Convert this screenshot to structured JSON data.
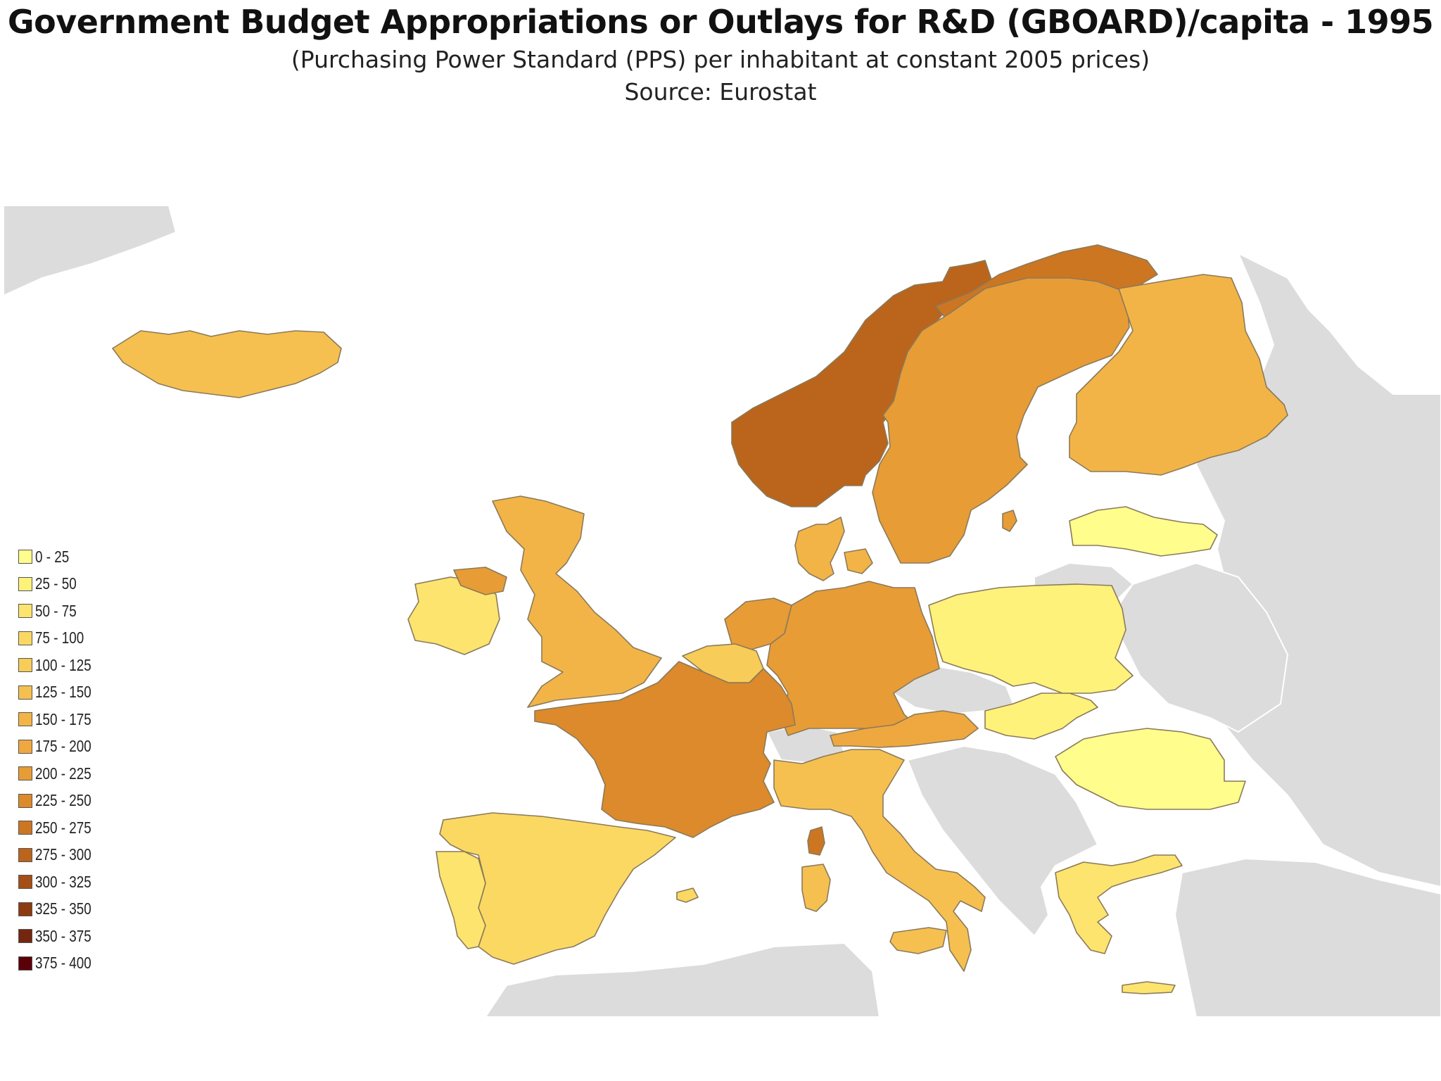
{
  "header": {
    "title": "Government Budget Appropriations or Outlays for R&D (GBOARD)/capita - 1995",
    "subtitle": "(Purchasing Power Standard (PPS) per inhabitant at constant 2005 prices)",
    "source": "Source: Eurostat"
  },
  "legend": [
    {
      "label": "0 - 25",
      "color": "#fffd8c"
    },
    {
      "label": "25 - 50",
      "color": "#fff27a"
    },
    {
      "label": "50 - 75",
      "color": "#fde46e"
    },
    {
      "label": "75 - 100",
      "color": "#fbd862"
    },
    {
      "label": "100 - 125",
      "color": "#f8cc58"
    },
    {
      "label": "125 - 150",
      "color": "#f6c050"
    },
    {
      "label": "150 - 175",
      "color": "#f3b447"
    },
    {
      "label": "175 - 200",
      "color": "#efa83f"
    },
    {
      "label": "200 - 225",
      "color": "#e89c36"
    },
    {
      "label": "225 - 250",
      "color": "#dc8a2b"
    },
    {
      "label": "250 - 275",
      "color": "#cc7622"
    },
    {
      "label": "275 - 300",
      "color": "#bb641b"
    },
    {
      "label": "300 - 325",
      "color": "#a54e16"
    },
    {
      "label": "325 - 350",
      "color": "#8d3a12"
    },
    {
      "label": "350 - 375",
      "color": "#74260e"
    },
    {
      "label": "375 - 400",
      "color": "#5c0008"
    }
  ],
  "colors": {
    "background_land": "#dedede",
    "border": "#8a7a5a",
    "no_data": "#d9d9d9"
  }
}
